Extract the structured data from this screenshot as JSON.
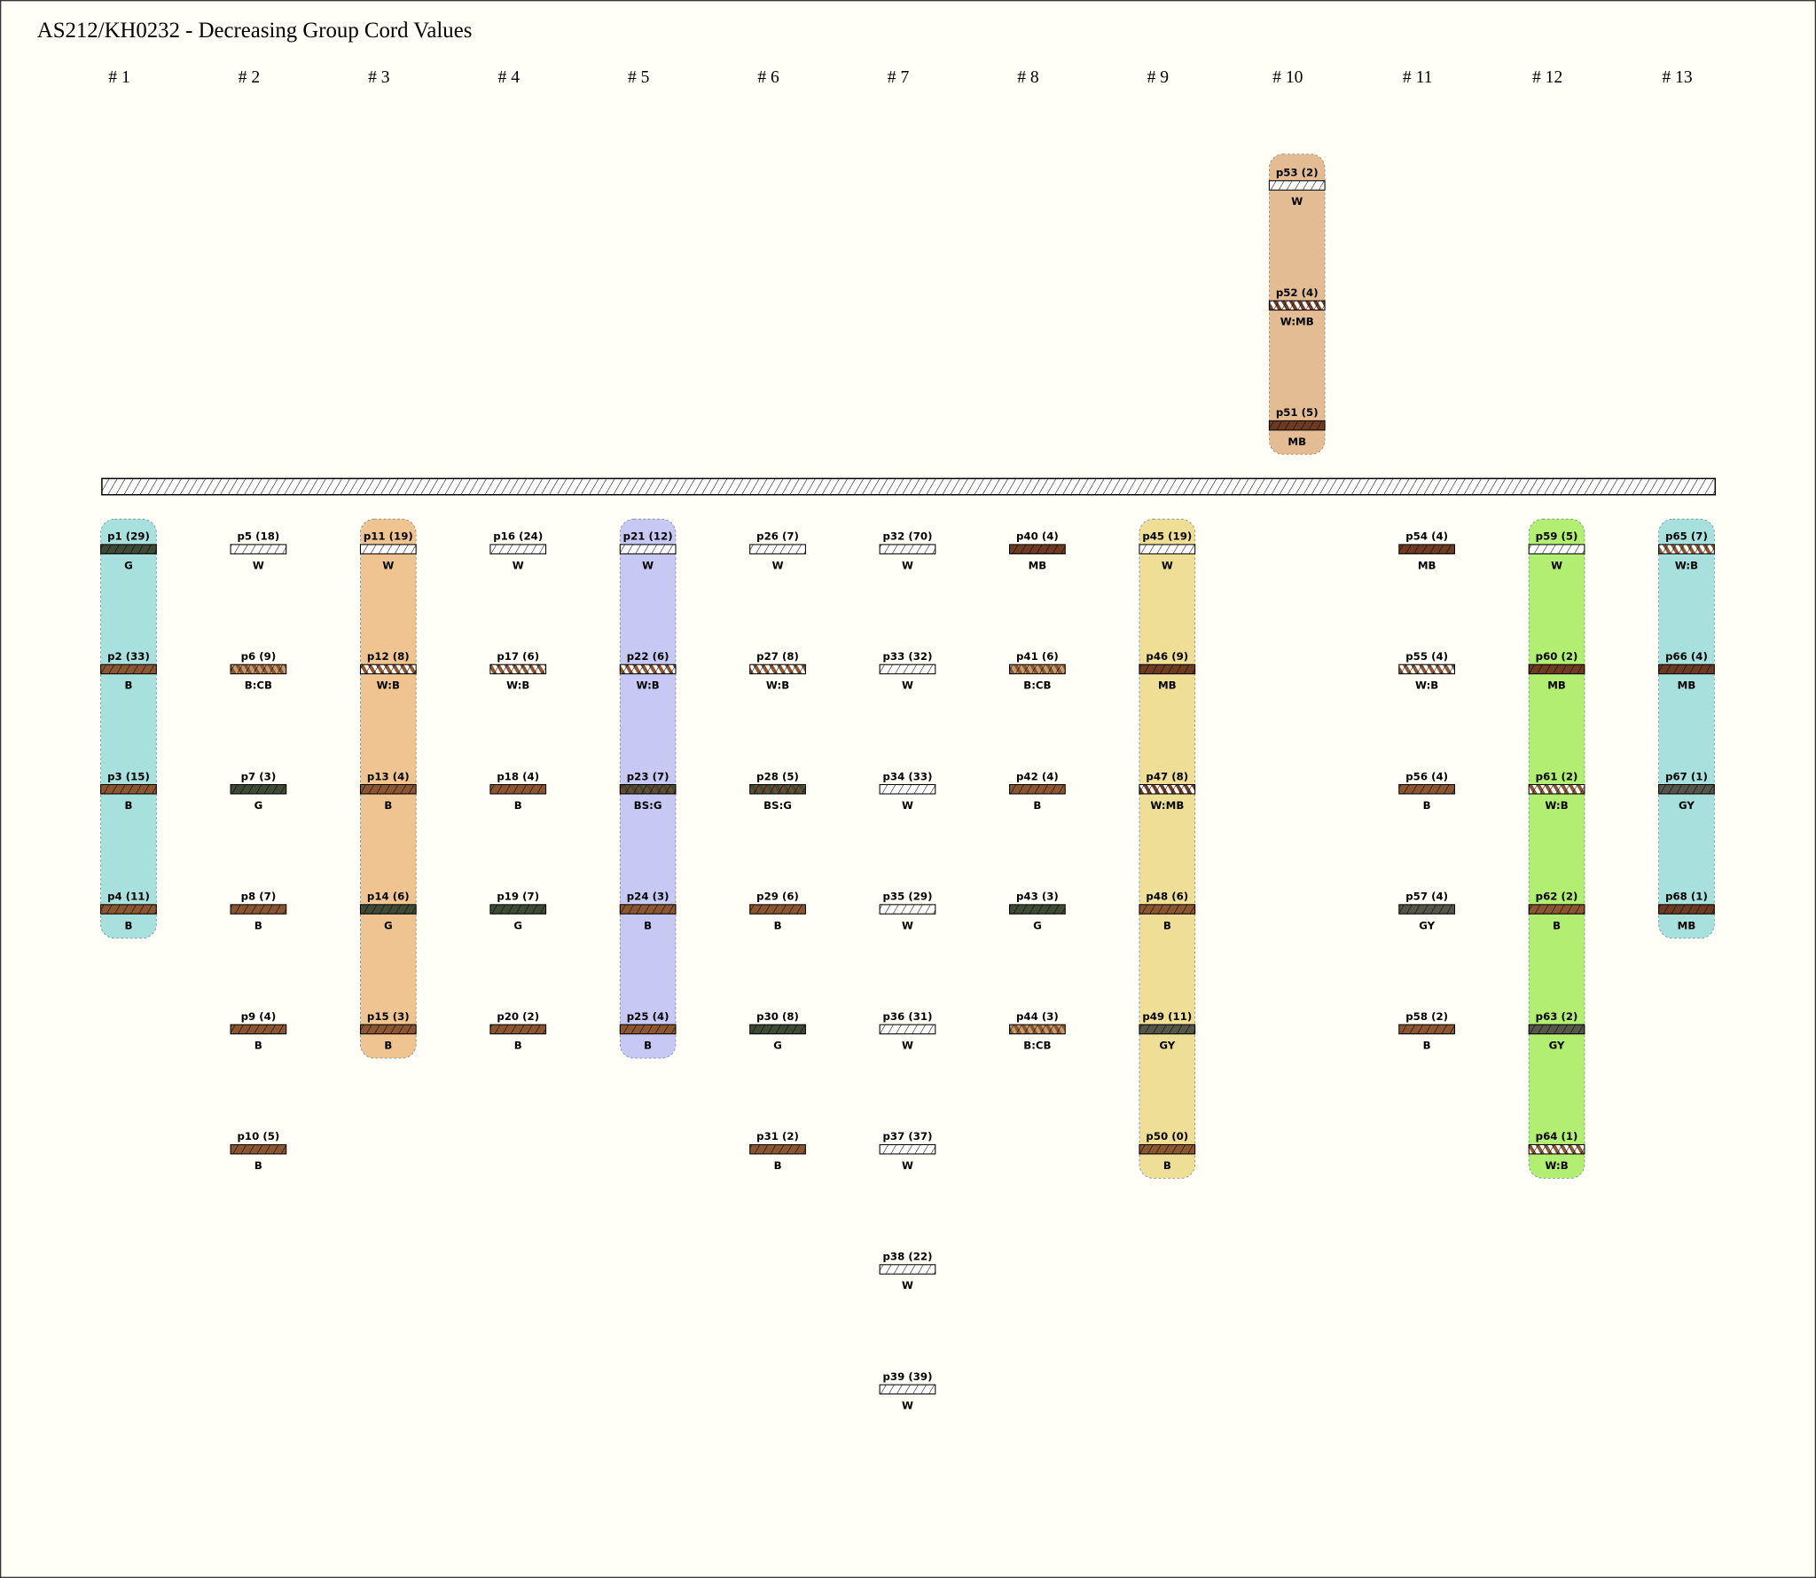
{
  "title": "AS212/KH0232 - Decreasing Group Cord Values",
  "groups": [
    {
      "label": "# 1",
      "color": "#a8e0dd",
      "cords": [
        {
          "label": "p1 (29)",
          "code": "G"
        },
        {
          "label": "p2 (33)",
          "code": "B"
        },
        {
          "label": "p3 (15)",
          "code": "B"
        },
        {
          "label": "p4 (11)",
          "code": "B"
        }
      ]
    },
    {
      "label": "# 2",
      "cords": [
        {
          "label": "p5 (18)",
          "code": "W"
        },
        {
          "label": "p6 (9)",
          "code": "B:CB"
        },
        {
          "label": "p7 (3)",
          "code": "G"
        },
        {
          "label": "p8 (7)",
          "code": "B"
        },
        {
          "label": "p9 (4)",
          "code": "B"
        },
        {
          "label": "p10 (5)",
          "code": "B"
        }
      ]
    },
    {
      "label": "# 3",
      "color": "#f0c490",
      "cords": [
        {
          "label": "p11 (19)",
          "code": "W"
        },
        {
          "label": "p12 (8)",
          "code": "W:B"
        },
        {
          "label": "p13 (4)",
          "code": "B"
        },
        {
          "label": "p14 (6)",
          "code": "G"
        },
        {
          "label": "p15 (3)",
          "code": "B"
        }
      ]
    },
    {
      "label": "# 4",
      "cords": [
        {
          "label": "p16 (24)",
          "code": "W"
        },
        {
          "label": "p17 (6)",
          "code": "W:B"
        },
        {
          "label": "p18 (4)",
          "code": "B"
        },
        {
          "label": "p19 (7)",
          "code": "G"
        },
        {
          "label": "p20 (2)",
          "code": "B"
        }
      ]
    },
    {
      "label": "# 5",
      "color": "#c8c8f5",
      "cords": [
        {
          "label": "p21 (12)",
          "code": "W"
        },
        {
          "label": "p22 (6)",
          "code": "W:B"
        },
        {
          "label": "p23 (7)",
          "code": "BS:G"
        },
        {
          "label": "p24 (3)",
          "code": "B"
        },
        {
          "label": "p25 (4)",
          "code": "B"
        }
      ]
    },
    {
      "label": "# 6",
      "cords": [
        {
          "label": "p26 (7)",
          "code": "W"
        },
        {
          "label": "p27 (8)",
          "code": "W:B"
        },
        {
          "label": "p28 (5)",
          "code": "BS:G"
        },
        {
          "label": "p29 (6)",
          "code": "B"
        },
        {
          "label": "p30 (8)",
          "code": "G"
        },
        {
          "label": "p31 (2)",
          "code": "B"
        }
      ]
    },
    {
      "label": "# 7",
      "cords": [
        {
          "label": "p32 (70)",
          "code": "W"
        },
        {
          "label": "p33 (32)",
          "code": "W"
        },
        {
          "label": "p34 (33)",
          "code": "W"
        },
        {
          "label": "p35 (29)",
          "code": "W"
        },
        {
          "label": "p36 (31)",
          "code": "W"
        },
        {
          "label": "p37 (37)",
          "code": "W"
        },
        {
          "label": "p38 (22)",
          "code": "W"
        },
        {
          "label": "p39 (39)",
          "code": "W"
        }
      ]
    },
    {
      "label": "# 8",
      "cords": [
        {
          "label": "p40 (4)",
          "code": "MB"
        },
        {
          "label": "p41 (6)",
          "code": "B:CB"
        },
        {
          "label": "p42 (4)",
          "code": "B"
        },
        {
          "label": "p43 (3)",
          "code": "G"
        },
        {
          "label": "p44 (3)",
          "code": "B:CB"
        }
      ]
    },
    {
      "label": "# 9",
      "color": "#efde95",
      "cords": [
        {
          "label": "p45 (19)",
          "code": "W"
        },
        {
          "label": "p46 (9)",
          "code": "MB"
        },
        {
          "label": "p47 (8)",
          "code": "W:MB"
        },
        {
          "label": "p48 (6)",
          "code": "B"
        },
        {
          "label": "p49 (11)",
          "code": "GY"
        },
        {
          "label": "p50 (0)",
          "code": "B"
        }
      ]
    },
    {
      "label": "# 10",
      "top_color": "#e3bc94",
      "cords": [],
      "top_cords": [
        {
          "label": "p53 (2)",
          "code": "W"
        },
        {
          "label": "p52 (4)",
          "code": "W:MB"
        },
        {
          "label": "p51 (5)",
          "code": "MB"
        }
      ]
    },
    {
      "label": "# 11",
      "cords": [
        {
          "label": "p54 (4)",
          "code": "MB"
        },
        {
          "label": "p55 (4)",
          "code": "W:B"
        },
        {
          "label": "p56 (4)",
          "code": "B"
        },
        {
          "label": "p57 (4)",
          "code": "GY"
        },
        {
          "label": "p58 (2)",
          "code": "B"
        }
      ]
    },
    {
      "label": "# 12",
      "color": "#b2ee72",
      "cords": [
        {
          "label": "p59 (5)",
          "code": "W"
        },
        {
          "label": "p60 (2)",
          "code": "MB"
        },
        {
          "label": "p61 (2)",
          "code": "W:B"
        },
        {
          "label": "p62 (2)",
          "code": "B"
        },
        {
          "label": "p63 (2)",
          "code": "GY"
        },
        {
          "label": "p64 (1)",
          "code": "W:B"
        }
      ]
    },
    {
      "label": "# 13",
      "color": "#a8e0dd",
      "cords": [
        {
          "label": "p65 (7)",
          "code": "W:B"
        },
        {
          "label": "p66 (4)",
          "code": "MB"
        },
        {
          "label": "p67 (1)",
          "code": "GY"
        },
        {
          "label": "p68 (1)",
          "code": "MB"
        }
      ]
    }
  ]
}
